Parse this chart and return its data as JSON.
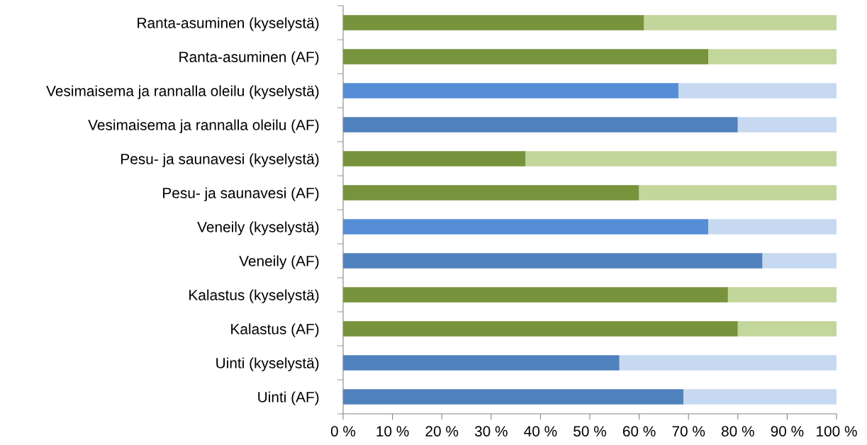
{
  "chart_data": {
    "type": "bar",
    "orientation": "horizontal",
    "stacked": true,
    "grid": false,
    "legend": false,
    "categories": [
      "Ranta-asuminen (kyselystä)",
      "Ranta-asuminen (AF)",
      "Vesimaisema ja rannalla oleilu (kyselystä)",
      "Vesimaisema ja rannalla oleilu (AF)",
      "Pesu- ja saunavesi (kyselystä)",
      "Pesu- ja saunavesi (AF)",
      "Veneily (kyselystä)",
      "Veneily (AF)",
      "Kalastus (kyselystä)",
      "Kalastus (AF)",
      "Uinti (kyselystä)",
      "Uinti (AF)"
    ],
    "series": [
      {
        "values": [
          61,
          74,
          68,
          80,
          37,
          60,
          74,
          85,
          78,
          80,
          56,
          69
        ],
        "colors": [
          "#77933c",
          "#77933c",
          "#558ed5",
          "#4f81bd",
          "#77933c",
          "#77933c",
          "#558ed5",
          "#4f81bd",
          "#77933c",
          "#77933c",
          "#4f81bd",
          "#4f81bd"
        ]
      },
      {
        "values": [
          39,
          26,
          32,
          20,
          63,
          40,
          26,
          15,
          22,
          20,
          44,
          31
        ],
        "colors": [
          "#c3d69b",
          "#c3d69b",
          "#c6d9f1",
          "#c6d9f1",
          "#c3d69b",
          "#c3d69b",
          "#c6d9f1",
          "#c6d9f1",
          "#c3d69b",
          "#c3d69b",
          "#c6d9f1",
          "#c6d9f1"
        ]
      }
    ],
    "xlim": [
      0,
      100
    ],
    "xticks": [
      {
        "value": 0,
        "label": "0 %"
      },
      {
        "value": 10,
        "label": "10 %"
      },
      {
        "value": 20,
        "label": "20 %"
      },
      {
        "value": 30,
        "label": "30 %"
      },
      {
        "value": 40,
        "label": "40 %"
      },
      {
        "value": 50,
        "label": "50 %"
      },
      {
        "value": 60,
        "label": "60 %"
      },
      {
        "value": 70,
        "label": "70 %"
      },
      {
        "value": 80,
        "label": "80 %"
      },
      {
        "value": 90,
        "label": "90 %"
      },
      {
        "value": 100,
        "label": "100 %"
      }
    ]
  }
}
